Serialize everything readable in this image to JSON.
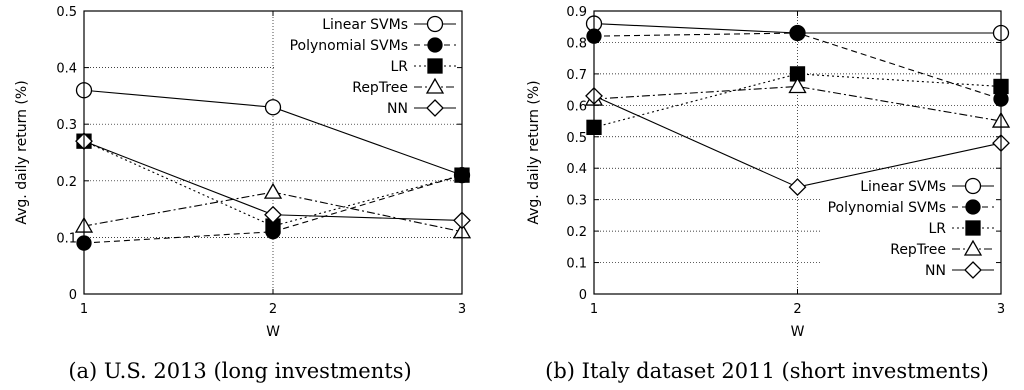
{
  "chart_data": [
    {
      "type": "line",
      "caption": "(a) U.S. 2013 (long investments)",
      "xlabel": "W",
      "ylabel": "Avg. daily return (%)",
      "x": [
        1,
        2,
        3
      ],
      "xticks": [
        "1",
        "2",
        "3"
      ],
      "ylim": [
        0,
        0.5
      ],
      "yticks": [
        "0",
        "0.1",
        "0.2",
        "0.3",
        "0.4",
        "0.5"
      ],
      "grid": true,
      "legend_position": "top-right",
      "series": [
        {
          "name": "Linear SVMs",
          "marker": "open-circle",
          "dash": "solid",
          "values": [
            0.36,
            0.33,
            0.21
          ]
        },
        {
          "name": "Polynomial SVMs",
          "marker": "filled-circle",
          "dash": "dashed",
          "values": [
            0.09,
            0.11,
            0.21
          ]
        },
        {
          "name": "LR",
          "marker": "filled-square",
          "dash": "dotted",
          "values": [
            0.27,
            0.12,
            0.21
          ]
        },
        {
          "name": "RepTree",
          "marker": "open-triangle",
          "dash": "dash-dot",
          "values": [
            0.12,
            0.18,
            0.11
          ]
        },
        {
          "name": "NN",
          "marker": "open-diamond",
          "dash": "solid",
          "values": [
            0.27,
            0.14,
            0.13
          ]
        }
      ]
    },
    {
      "type": "line",
      "caption": "(b) Italy dataset 2011 (short investments)",
      "xlabel": "W",
      "ylabel": "Avg. daily return (%)",
      "x": [
        1,
        2,
        3
      ],
      "xticks": [
        "1",
        "2",
        "3"
      ],
      "ylim": [
        0,
        0.9
      ],
      "yticks": [
        "0",
        "0.1",
        "0.2",
        "0.3",
        "0.4",
        "0.5",
        "0.6",
        "0.7",
        "0.8",
        "0.9"
      ],
      "grid": true,
      "legend_position": "bottom-right",
      "series": [
        {
          "name": "Linear SVMs",
          "marker": "open-circle",
          "dash": "solid",
          "values": [
            0.86,
            0.83,
            0.83
          ]
        },
        {
          "name": "Polynomial SVMs",
          "marker": "filled-circle",
          "dash": "dashed",
          "values": [
            0.82,
            0.83,
            0.62
          ]
        },
        {
          "name": "LR",
          "marker": "filled-square",
          "dash": "dotted",
          "values": [
            0.53,
            0.7,
            0.66
          ]
        },
        {
          "name": "RepTree",
          "marker": "open-triangle",
          "dash": "dash-dot",
          "values": [
            0.62,
            0.66,
            0.55
          ]
        },
        {
          "name": "NN",
          "marker": "open-diamond",
          "dash": "solid",
          "values": [
            0.63,
            0.34,
            0.48
          ]
        }
      ]
    }
  ]
}
